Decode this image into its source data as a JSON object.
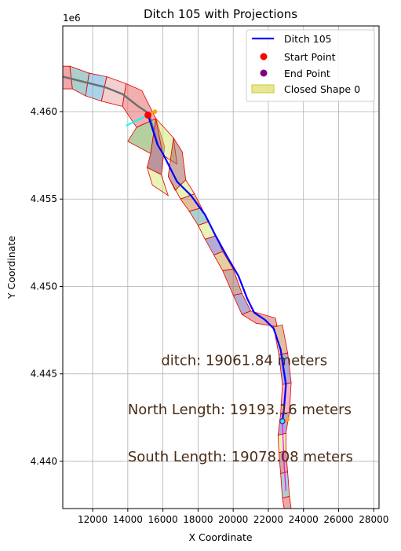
{
  "chart_data": {
    "type": "line",
    "title": "Ditch 105 with Projections",
    "xlabel": "X Coordinate",
    "ylabel": "Y Coordinate",
    "y_offset_label": "1e6",
    "xlim": [
      10300,
      28300
    ],
    "ylim": [
      4437300,
      4464900
    ],
    "grid": true,
    "legend_placement": "top-right",
    "x_ticks": [
      12000,
      14000,
      16000,
      18000,
      20000,
      22000,
      24000,
      26000,
      28000
    ],
    "x_tick_labels": [
      "12000",
      "14000",
      "16000",
      "18000",
      "20000",
      "22000",
      "24000",
      "26000",
      "28000"
    ],
    "y_ticks": [
      4440000,
      4445000,
      4450000,
      4455000,
      4460000
    ],
    "y_tick_labels": [
      "4.440",
      "4.445",
      "4.450",
      "4.455",
      "4.460"
    ],
    "legend": [
      {
        "label": "Ditch 105",
        "kind": "line",
        "color": "#0000ff"
      },
      {
        "label": "Start Point",
        "kind": "marker",
        "color": "#ff0000"
      },
      {
        "label": "End Point",
        "kind": "marker",
        "color": "#800080"
      },
      {
        "label": "Closed Shape 0",
        "kind": "patch",
        "color": "#d8d84a"
      }
    ],
    "series": [
      {
        "name": "Ditch 105",
        "color": "#0000ff",
        "x": [
          15150,
          15700,
          16000,
          16800,
          17600,
          18400,
          19000,
          19600,
          20300,
          20800,
          21200,
          21800,
          22300,
          22700,
          23000,
          22900,
          22800
        ],
        "y": [
          4459800,
          4458100,
          4457600,
          4456000,
          4455200,
          4454100,
          4452900,
          4451800,
          4450600,
          4449300,
          4448500,
          4448100,
          4447600,
          4446400,
          4444400,
          4443100,
          4442300
        ]
      }
    ],
    "centerline": {
      "color": "#6f6f6f",
      "x": [
        10300,
        11500,
        12700,
        13700,
        14600,
        15200,
        15700
      ],
      "y": [
        4462000,
        4461700,
        4461400,
        4461000,
        4460300,
        4459900,
        4458100
      ]
    },
    "south_line": {
      "color": "#ff00ff",
      "x": [
        22800,
        22850,
        22900,
        23000
      ],
      "y": [
        4442300,
        4441000,
        4439800,
        4438300
      ]
    },
    "projections": [
      {
        "color": "#00ffff",
        "x": [
          13900,
          15150
        ],
        "y": [
          4459200,
          4459800
        ]
      },
      {
        "color": "#ffa500",
        "x": [
          15150,
          15500
        ],
        "y": [
          4459800,
          4460000
        ]
      }
    ],
    "start_point": {
      "x": 15150,
      "y": 4459800,
      "color": "#ff0000"
    },
    "end_point": {
      "x": 22800,
      "y": 4442300,
      "color": "#800080"
    },
    "end_markers": [
      {
        "x": 22800,
        "y": 4442300,
        "color": "#00ffff"
      },
      {
        "x": 23100,
        "y": 4442400,
        "color": "#ffa500"
      },
      {
        "x": 15550,
        "y": 4460000,
        "color": "#ffa500"
      }
    ],
    "segments": [
      {
        "color": "#e05050",
        "x": [
          10300,
          10700,
          10850,
          10300
        ],
        "y": [
          4462600,
          4462600,
          4461300,
          4461300
        ]
      },
      {
        "color": "#55a09a",
        "x": [
          10700,
          11800,
          11600,
          10850
        ],
        "y": [
          4462600,
          4462200,
          4460900,
          4461300
        ]
      },
      {
        "color": "#5aa8d8",
        "x": [
          11800,
          12800,
          12500,
          11600
        ],
        "y": [
          4462200,
          4462000,
          4460600,
          4460900
        ]
      },
      {
        "color": "#e8a0a0",
        "x": [
          12800,
          13900,
          13700,
          12500
        ],
        "y": [
          4462000,
          4461600,
          4460300,
          4460600
        ]
      },
      {
        "color": "#e86060",
        "x": [
          13900,
          14800,
          15600,
          14500,
          13700
        ],
        "y": [
          4461600,
          4461200,
          4459600,
          4459100,
          4460300
        ]
      },
      {
        "color": "#6ea040",
        "x": [
          14500,
          15600,
          15300,
          14000
        ],
        "y": [
          4459100,
          4459600,
          4457600,
          4458300
        ]
      },
      {
        "color": "#7a2a3a",
        "x": [
          15300,
          15600,
          16100,
          15900,
          15100
        ],
        "y": [
          4457600,
          4459600,
          4458000,
          4456400,
          4456800
        ]
      },
      {
        "color": "#d4e870",
        "x": [
          15100,
          15900,
          16300,
          15400
        ],
        "y": [
          4456800,
          4456400,
          4455200,
          4455800
        ]
      },
      {
        "color": "#d4e870",
        "x": [
          15600,
          16600,
          16800,
          16000
        ],
        "y": [
          4459600,
          4458500,
          4457000,
          4457500
        ]
      },
      {
        "color": "#9a5a4a",
        "x": [
          16600,
          17100,
          17300,
          16700,
          16300
        ],
        "y": [
          4458500,
          4457700,
          4456100,
          4455500,
          4456300
        ]
      },
      {
        "color": "#d4e870",
        "x": [
          16300,
          16700,
          17300,
          17800,
          17000
        ],
        "y": [
          4456300,
          4455500,
          4456100,
          4455300,
          4455000
        ]
      },
      {
        "color": "#c77f3f",
        "x": [
          17000,
          17800,
          18200,
          17500
        ],
        "y": [
          4455000,
          4455300,
          4454500,
          4454300
        ]
      },
      {
        "color": "#60a0a0",
        "x": [
          17500,
          18200,
          18600,
          18000
        ],
        "y": [
          4454300,
          4454500,
          4453700,
          4453500
        ]
      },
      {
        "color": "#d4e870",
        "x": [
          18000,
          18600,
          19000,
          18400
        ],
        "y": [
          4453500,
          4453700,
          4452900,
          4452700
        ]
      },
      {
        "color": "#6a5aa8",
        "x": [
          18400,
          19000,
          19400,
          18900
        ],
        "y": [
          4452700,
          4452900,
          4452000,
          4451800
        ]
      },
      {
        "color": "#c8a040",
        "x": [
          18900,
          19400,
          20000,
          19400
        ],
        "y": [
          4451800,
          4452000,
          4451000,
          4450900
        ]
      },
      {
        "color": "#9a5a4a",
        "x": [
          19400,
          20000,
          20500,
          20000
        ],
        "y": [
          4450900,
          4451000,
          4449600,
          4449500
        ]
      },
      {
        "color": "#6a5aa8",
        "x": [
          20000,
          20500,
          21000,
          20500
        ],
        "y": [
          4449500,
          4449600,
          4448600,
          4448400
        ]
      },
      {
        "color": "#d06060",
        "x": [
          20500,
          21000,
          22400,
          22500,
          21300
        ],
        "y": [
          4448400,
          4448600,
          4448200,
          4447700,
          4447900
        ]
      },
      {
        "color": "#c77f3f",
        "x": [
          22300,
          22800,
          23100,
          22600
        ],
        "y": [
          4447700,
          4447800,
          4446200,
          4446100
        ]
      },
      {
        "color": "#6a5aa8",
        "x": [
          22600,
          23100,
          23300,
          22800
        ],
        "y": [
          4446100,
          4446200,
          4444500,
          4444400
        ]
      },
      {
        "color": "#e87090",
        "x": [
          22800,
          23300,
          23200,
          22700
        ],
        "y": [
          4444400,
          4444500,
          4442800,
          4442700
        ]
      },
      {
        "color": "#6a5aa8",
        "x": [
          22700,
          23200,
          23000,
          22550
        ],
        "y": [
          4442700,
          4442800,
          4441600,
          4441500
        ]
      },
      {
        "color": "#d4e870",
        "x": [
          22550,
          23000,
          23000,
          22600
        ],
        "y": [
          4441500,
          4441600,
          4440600,
          4440500
        ]
      },
      {
        "color": "#9a5a4a",
        "x": [
          22600,
          23000,
          23100,
          22700
        ],
        "y": [
          4440500,
          4440600,
          4439400,
          4439300
        ]
      },
      {
        "color": "#60a0a0",
        "x": [
          22700,
          23100,
          23200,
          22800
        ],
        "y": [
          4439300,
          4439400,
          4438000,
          4437900
        ]
      },
      {
        "color": "#e05050",
        "x": [
          22800,
          23200,
          23300,
          22900
        ],
        "y": [
          4437900,
          4438000,
          4437300,
          4437300
        ]
      }
    ],
    "annotations": [
      {
        "text": "ditch: 19061.84 meters",
        "x": 15900,
        "y": 4445500
      },
      {
        "text": "North Length: 19193.16 meters",
        "x": 14000,
        "y": 4442700
      },
      {
        "text": "South Length: 19078.08 meters",
        "x": 14000,
        "y": 4440000
      }
    ]
  }
}
